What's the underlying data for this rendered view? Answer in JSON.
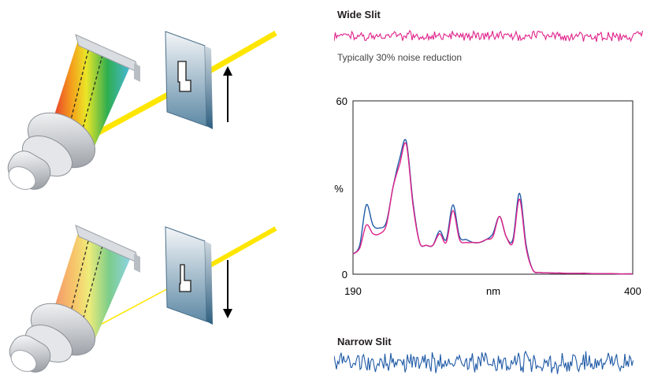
{
  "labels": {
    "wide_slit": "Wide Slit",
    "noise_reduction": "Typically 30% noise reduction",
    "narrow_slit": "Narrow Slit"
  },
  "colors": {
    "wide": "#e0218a",
    "narrow": "#1f5aa6",
    "beam": "#ffe600"
  },
  "chart_data": {
    "type": "line",
    "title": "",
    "xlabel": "nm",
    "ylabel": "%",
    "xlim": [
      190,
      400
    ],
    "ylim": [
      0,
      60
    ],
    "x_ticks": [
      "190",
      "400"
    ],
    "y_ticks": [
      "0",
      "60"
    ],
    "grid": false,
    "x": [
      190,
      195,
      200,
      205,
      210,
      215,
      220,
      225,
      230,
      235,
      240,
      245,
      250,
      255,
      260,
      265,
      270,
      275,
      280,
      285,
      290,
      295,
      300,
      305,
      310,
      315,
      320,
      325,
      330,
      335,
      340,
      345,
      350,
      355,
      360,
      365,
      370,
      375,
      380,
      385,
      390,
      395,
      400
    ],
    "series": [
      {
        "color": "#1f5aa6",
        "values": [
          7,
          10,
          24,
          17,
          16,
          18,
          30,
          40,
          46,
          25,
          11,
          10,
          10,
          15,
          12,
          24,
          13,
          12,
          11,
          11,
          12,
          14,
          20,
          13,
          12,
          28,
          10,
          1.5,
          0.6,
          0.5,
          0.4,
          0.4,
          0.3,
          0.3,
          0.3,
          0.3,
          0.2,
          0.2,
          0.2,
          0.2,
          0.1,
          0.1,
          0.1
        ]
      },
      {
        "color": "#e0218a",
        "values": [
          7,
          9,
          17,
          14,
          14,
          17,
          30,
          38,
          45,
          24,
          11,
          10,
          10,
          14,
          11,
          22,
          12,
          11,
          11,
          11,
          12,
          13,
          20,
          13,
          11,
          26,
          9,
          1.5,
          0.6,
          0.5,
          0.4,
          0.4,
          0.3,
          0.3,
          0.3,
          0.3,
          0.2,
          0.2,
          0.2,
          0.2,
          0.1,
          0.1,
          0.1
        ]
      }
    ]
  }
}
